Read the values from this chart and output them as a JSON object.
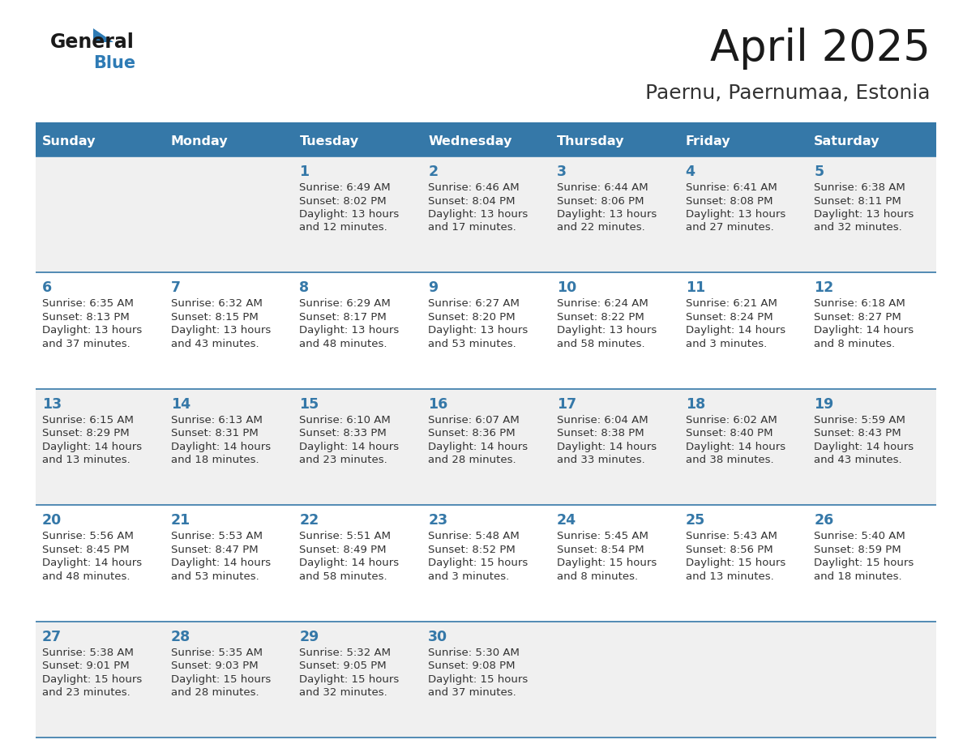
{
  "title": "April 2025",
  "subtitle": "Paernu, Paernumaa, Estonia",
  "days_of_week": [
    "Sunday",
    "Monday",
    "Tuesday",
    "Wednesday",
    "Thursday",
    "Friday",
    "Saturday"
  ],
  "header_bg": "#3578a8",
  "header_text": "#FFFFFF",
  "row_bg_odd": "#f0f0f0",
  "row_bg_even": "#FFFFFF",
  "day_num_color": "#3578a8",
  "text_color": "#333333",
  "line_color": "#3578a8",
  "title_color": "#1a1a1a",
  "subtitle_color": "#333333",
  "calendar": [
    [
      {
        "day": null,
        "sunrise": null,
        "sunset": null,
        "daylight": null
      },
      {
        "day": null,
        "sunrise": null,
        "sunset": null,
        "daylight": null
      },
      {
        "day": 1,
        "sunrise": "6:49 AM",
        "sunset": "8:02 PM",
        "daylight": "13 hours\nand 12 minutes."
      },
      {
        "day": 2,
        "sunrise": "6:46 AM",
        "sunset": "8:04 PM",
        "daylight": "13 hours\nand 17 minutes."
      },
      {
        "day": 3,
        "sunrise": "6:44 AM",
        "sunset": "8:06 PM",
        "daylight": "13 hours\nand 22 minutes."
      },
      {
        "day": 4,
        "sunrise": "6:41 AM",
        "sunset": "8:08 PM",
        "daylight": "13 hours\nand 27 minutes."
      },
      {
        "day": 5,
        "sunrise": "6:38 AM",
        "sunset": "8:11 PM",
        "daylight": "13 hours\nand 32 minutes."
      }
    ],
    [
      {
        "day": 6,
        "sunrise": "6:35 AM",
        "sunset": "8:13 PM",
        "daylight": "13 hours\nand 37 minutes."
      },
      {
        "day": 7,
        "sunrise": "6:32 AM",
        "sunset": "8:15 PM",
        "daylight": "13 hours\nand 43 minutes."
      },
      {
        "day": 8,
        "sunrise": "6:29 AM",
        "sunset": "8:17 PM",
        "daylight": "13 hours\nand 48 minutes."
      },
      {
        "day": 9,
        "sunrise": "6:27 AM",
        "sunset": "8:20 PM",
        "daylight": "13 hours\nand 53 minutes."
      },
      {
        "day": 10,
        "sunrise": "6:24 AM",
        "sunset": "8:22 PM",
        "daylight": "13 hours\nand 58 minutes."
      },
      {
        "day": 11,
        "sunrise": "6:21 AM",
        "sunset": "8:24 PM",
        "daylight": "14 hours\nand 3 minutes."
      },
      {
        "day": 12,
        "sunrise": "6:18 AM",
        "sunset": "8:27 PM",
        "daylight": "14 hours\nand 8 minutes."
      }
    ],
    [
      {
        "day": 13,
        "sunrise": "6:15 AM",
        "sunset": "8:29 PM",
        "daylight": "14 hours\nand 13 minutes."
      },
      {
        "day": 14,
        "sunrise": "6:13 AM",
        "sunset": "8:31 PM",
        "daylight": "14 hours\nand 18 minutes."
      },
      {
        "day": 15,
        "sunrise": "6:10 AM",
        "sunset": "8:33 PM",
        "daylight": "14 hours\nand 23 minutes."
      },
      {
        "day": 16,
        "sunrise": "6:07 AM",
        "sunset": "8:36 PM",
        "daylight": "14 hours\nand 28 minutes."
      },
      {
        "day": 17,
        "sunrise": "6:04 AM",
        "sunset": "8:38 PM",
        "daylight": "14 hours\nand 33 minutes."
      },
      {
        "day": 18,
        "sunrise": "6:02 AM",
        "sunset": "8:40 PM",
        "daylight": "14 hours\nand 38 minutes."
      },
      {
        "day": 19,
        "sunrise": "5:59 AM",
        "sunset": "8:43 PM",
        "daylight": "14 hours\nand 43 minutes."
      }
    ],
    [
      {
        "day": 20,
        "sunrise": "5:56 AM",
        "sunset": "8:45 PM",
        "daylight": "14 hours\nand 48 minutes."
      },
      {
        "day": 21,
        "sunrise": "5:53 AM",
        "sunset": "8:47 PM",
        "daylight": "14 hours\nand 53 minutes."
      },
      {
        "day": 22,
        "sunrise": "5:51 AM",
        "sunset": "8:49 PM",
        "daylight": "14 hours\nand 58 minutes."
      },
      {
        "day": 23,
        "sunrise": "5:48 AM",
        "sunset": "8:52 PM",
        "daylight": "15 hours\nand 3 minutes."
      },
      {
        "day": 24,
        "sunrise": "5:45 AM",
        "sunset": "8:54 PM",
        "daylight": "15 hours\nand 8 minutes."
      },
      {
        "day": 25,
        "sunrise": "5:43 AM",
        "sunset": "8:56 PM",
        "daylight": "15 hours\nand 13 minutes."
      },
      {
        "day": 26,
        "sunrise": "5:40 AM",
        "sunset": "8:59 PM",
        "daylight": "15 hours\nand 18 minutes."
      }
    ],
    [
      {
        "day": 27,
        "sunrise": "5:38 AM",
        "sunset": "9:01 PM",
        "daylight": "15 hours\nand 23 minutes."
      },
      {
        "day": 28,
        "sunrise": "5:35 AM",
        "sunset": "9:03 PM",
        "daylight": "15 hours\nand 28 minutes."
      },
      {
        "day": 29,
        "sunrise": "5:32 AM",
        "sunset": "9:05 PM",
        "daylight": "15 hours\nand 32 minutes."
      },
      {
        "day": 30,
        "sunrise": "5:30 AM",
        "sunset": "9:08 PM",
        "daylight": "15 hours\nand 37 minutes."
      },
      {
        "day": null,
        "sunrise": null,
        "sunset": null,
        "daylight": null
      },
      {
        "day": null,
        "sunrise": null,
        "sunset": null,
        "daylight": null
      },
      {
        "day": null,
        "sunrise": null,
        "sunset": null,
        "daylight": null
      }
    ]
  ]
}
